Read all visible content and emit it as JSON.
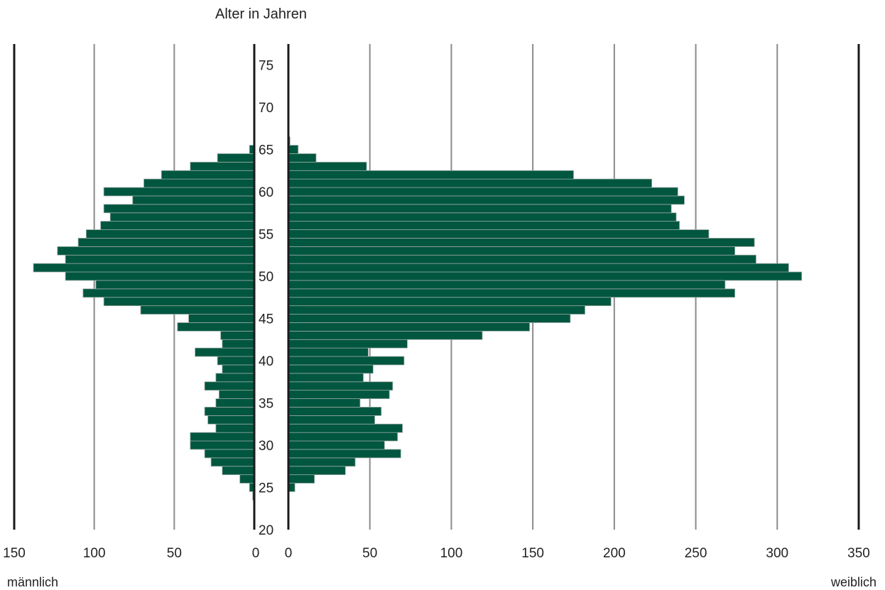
{
  "chart_data": {
    "type": "bar",
    "orientation": "horizontal",
    "layout": "population-pyramid",
    "title": "Alter in Jahren",
    "y_axis": {
      "label": "Alter in Jahren",
      "range": [
        20,
        77
      ],
      "ticks": [
        "20",
        "25",
        "30",
        "35",
        "40",
        "45",
        "50",
        "55",
        "60",
        "65",
        "70",
        "75"
      ]
    },
    "left_axis": {
      "label": "männlich",
      "range": [
        0,
        150
      ],
      "direction": "reversed",
      "ticks": [
        "150",
        "100",
        "50",
        "0"
      ]
    },
    "right_axis": {
      "label": "weiblich",
      "range": [
        0,
        350
      ],
      "ticks": [
        "0",
        "50",
        "100",
        "150",
        "200",
        "250",
        "300",
        "350"
      ]
    },
    "grid": true,
    "bar_color": "#00563f",
    "bar_edge_color": "#9aa8a3",
    "grid_color": "#8a8a8a",
    "axis_color": "#1a1a1a",
    "ages": [
      24,
      25,
      26,
      27,
      28,
      29,
      30,
      31,
      32,
      33,
      34,
      35,
      36,
      37,
      38,
      39,
      40,
      41,
      42,
      43,
      44,
      45,
      46,
      47,
      48,
      49,
      50,
      51,
      52,
      53,
      54,
      55,
      56,
      57,
      58,
      59,
      60,
      61,
      62,
      63,
      64,
      65,
      66
    ],
    "series": [
      {
        "name": "männlich",
        "values": [
          1,
          3,
          9,
          20,
          27,
          31,
          40,
          40,
          24,
          29,
          31,
          24,
          22,
          31,
          24,
          20,
          23,
          37,
          20,
          21,
          48,
          41,
          71,
          94,
          107,
          99,
          118,
          138,
          118,
          123,
          110,
          105,
          96,
          90,
          94,
          76,
          94,
          69,
          58,
          40,
          23,
          3,
          0
        ]
      },
      {
        "name": "weiblich",
        "values": [
          0,
          4,
          16,
          35,
          41,
          69,
          59,
          67,
          70,
          53,
          57,
          44,
          62,
          64,
          46,
          52,
          71,
          49,
          73,
          119,
          148,
          173,
          182,
          198,
          274,
          268,
          315,
          307,
          287,
          274,
          286,
          258,
          240,
          238,
          235,
          243,
          239,
          223,
          175,
          48,
          17,
          6,
          1
        ]
      }
    ]
  }
}
